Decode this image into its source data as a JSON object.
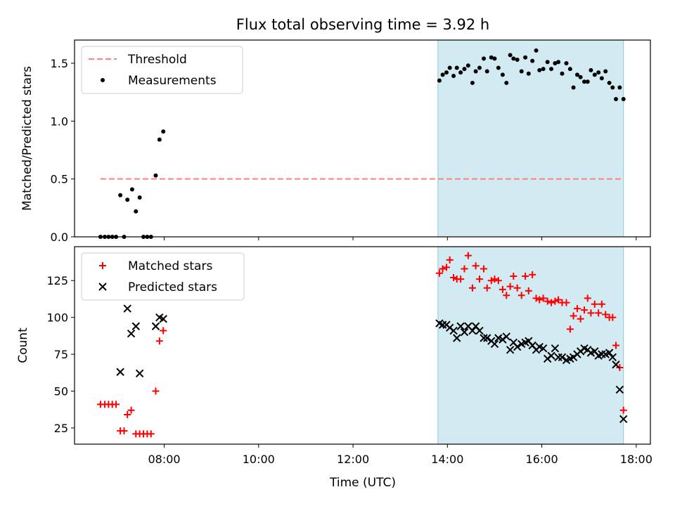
{
  "chart_data": {
    "type": "scatter",
    "title": "Flux total observing time = 3.92 h",
    "xlabel": "Time (UTC)",
    "xlim": [
      6.1,
      18.3
    ],
    "xticks": [
      {
        "value": 8,
        "label": "08:00"
      },
      {
        "value": 10,
        "label": "10:00"
      },
      {
        "value": 12,
        "label": "12:00"
      },
      {
        "value": 14,
        "label": "14:00"
      },
      {
        "value": 16,
        "label": "16:00"
      },
      {
        "value": 18,
        "label": "18:00"
      }
    ],
    "highlight_span": {
      "x_start": 13.8,
      "x_end": 17.73,
      "color": "#add8e6"
    },
    "panels": [
      {
        "id": "top",
        "ylabel": "Matched/Predicted stars",
        "ylim": [
          0,
          1.7
        ],
        "yticks": [
          {
            "value": 0,
            "label": "0.0"
          },
          {
            "value": 0.5,
            "label": "0.5"
          },
          {
            "value": 1.0,
            "label": "1.0"
          },
          {
            "value": 1.5,
            "label": "1.5"
          }
        ],
        "legend_position": "upper-left",
        "series": [
          {
            "name": "Threshold",
            "kind": "line",
            "style": "dashed",
            "color": "#ff7f7f",
            "points": [
              [
                6.65,
                0.5
              ],
              [
                17.7,
                0.5
              ]
            ]
          },
          {
            "name": "Measurements",
            "kind": "dot",
            "color": "#000000",
            "points": [
              [
                6.65,
                0.0
              ],
              [
                6.74,
                0.0
              ],
              [
                6.82,
                0.0
              ],
              [
                6.9,
                0.0
              ],
              [
                6.98,
                0.0
              ],
              [
                7.07,
                0.36
              ],
              [
                7.15,
                0.0
              ],
              [
                7.22,
                0.32
              ],
              [
                7.32,
                0.41
              ],
              [
                7.4,
                0.22
              ],
              [
                7.48,
                0.34
              ],
              [
                7.56,
                0.0
              ],
              [
                7.64,
                0.0
              ],
              [
                7.72,
                0.0
              ],
              [
                7.82,
                0.53
              ],
              [
                7.9,
                0.84
              ],
              [
                7.98,
                0.91
              ],
              [
                13.83,
                1.35
              ],
              [
                13.9,
                1.4
              ],
              [
                13.98,
                1.42
              ],
              [
                14.05,
                1.46
              ],
              [
                14.13,
                1.39
              ],
              [
                14.2,
                1.46
              ],
              [
                14.28,
                1.42
              ],
              [
                14.36,
                1.45
              ],
              [
                14.44,
                1.48
              ],
              [
                14.53,
                1.33
              ],
              [
                14.6,
                1.43
              ],
              [
                14.68,
                1.46
              ],
              [
                14.77,
                1.54
              ],
              [
                14.84,
                1.43
              ],
              [
                14.93,
                1.55
              ],
              [
                15.0,
                1.54
              ],
              [
                15.08,
                1.46
              ],
              [
                15.17,
                1.4
              ],
              [
                15.25,
                1.33
              ],
              [
                15.33,
                1.57
              ],
              [
                15.4,
                1.54
              ],
              [
                15.48,
                1.53
              ],
              [
                15.57,
                1.43
              ],
              [
                15.65,
                1.55
              ],
              [
                15.72,
                1.41
              ],
              [
                15.8,
                1.52
              ],
              [
                15.88,
                1.61
              ],
              [
                15.95,
                1.44
              ],
              [
                16.03,
                1.45
              ],
              [
                16.12,
                1.51
              ],
              [
                16.2,
                1.45
              ],
              [
                16.28,
                1.5
              ],
              [
                16.35,
                1.51
              ],
              [
                16.43,
                1.41
              ],
              [
                16.52,
                1.5
              ],
              [
                16.6,
                1.45
              ],
              [
                16.67,
                1.29
              ],
              [
                16.75,
                1.4
              ],
              [
                16.82,
                1.38
              ],
              [
                16.9,
                1.34
              ],
              [
                16.97,
                1.34
              ],
              [
                17.04,
                1.44
              ],
              [
                17.12,
                1.4
              ],
              [
                17.2,
                1.42
              ],
              [
                17.27,
                1.37
              ],
              [
                17.35,
                1.43
              ],
              [
                17.43,
                1.33
              ],
              [
                17.5,
                1.29
              ],
              [
                17.57,
                1.19
              ],
              [
                17.65,
                1.29
              ],
              [
                17.73,
                1.19
              ]
            ]
          }
        ]
      },
      {
        "id": "bottom",
        "ylabel": "Count",
        "ylim": [
          14,
          148
        ],
        "yticks": [
          {
            "value": 25,
            "label": "25"
          },
          {
            "value": 50,
            "label": "50"
          },
          {
            "value": 75,
            "label": "75"
          },
          {
            "value": 100,
            "label": "100"
          },
          {
            "value": 125,
            "label": "125"
          }
        ],
        "legend_position": "upper-left",
        "series": [
          {
            "name": "Matched stars",
            "kind": "plus",
            "color": "#ff0000",
            "points": [
              [
                6.65,
                41
              ],
              [
                6.74,
                41
              ],
              [
                6.82,
                41
              ],
              [
                6.9,
                41
              ],
              [
                6.98,
                41
              ],
              [
                7.07,
                23
              ],
              [
                7.15,
                23
              ],
              [
                7.22,
                34
              ],
              [
                7.3,
                37
              ],
              [
                7.4,
                21
              ],
              [
                7.48,
                21
              ],
              [
                7.56,
                21
              ],
              [
                7.64,
                21
              ],
              [
                7.72,
                21
              ],
              [
                7.82,
                50
              ],
              [
                7.9,
                84
              ],
              [
                7.98,
                91
              ],
              [
                13.83,
                130
              ],
              [
                13.9,
                133
              ],
              [
                13.98,
                134
              ],
              [
                14.05,
                139
              ],
              [
                14.13,
                127
              ],
              [
                14.2,
                126
              ],
              [
                14.28,
                126
              ],
              [
                14.36,
                133
              ],
              [
                14.44,
                142
              ],
              [
                14.53,
                120
              ],
              [
                14.6,
                135
              ],
              [
                14.68,
                126
              ],
              [
                14.77,
                133
              ],
              [
                14.84,
                120
              ],
              [
                14.93,
                125
              ],
              [
                15.0,
                126
              ],
              [
                15.08,
                125
              ],
              [
                15.17,
                119
              ],
              [
                15.25,
                115
              ],
              [
                15.33,
                121
              ],
              [
                15.4,
                128
              ],
              [
                15.48,
                120
              ],
              [
                15.57,
                115
              ],
              [
                15.65,
                128
              ],
              [
                15.72,
                118
              ],
              [
                15.8,
                129
              ],
              [
                15.88,
                113
              ],
              [
                15.95,
                112
              ],
              [
                16.03,
                113
              ],
              [
                16.12,
                111
              ],
              [
                16.2,
                110
              ],
              [
                16.28,
                111
              ],
              [
                16.35,
                112
              ],
              [
                16.43,
                110
              ],
              [
                16.52,
                110
              ],
              [
                16.6,
                92
              ],
              [
                16.67,
                101
              ],
              [
                16.75,
                106
              ],
              [
                16.82,
                99
              ],
              [
                16.9,
                105
              ],
              [
                16.97,
                113
              ],
              [
                17.04,
                103
              ],
              [
                17.12,
                109
              ],
              [
                17.2,
                103
              ],
              [
                17.27,
                109
              ],
              [
                17.35,
                102
              ],
              [
                17.43,
                100
              ],
              [
                17.5,
                100
              ],
              [
                17.57,
                81
              ],
              [
                17.65,
                66
              ],
              [
                17.73,
                37
              ]
            ]
          },
          {
            "name": "Predicted stars",
            "kind": "x",
            "color": "#000000",
            "points": [
              [
                7.07,
                63
              ],
              [
                7.22,
                106
              ],
              [
                7.3,
                89
              ],
              [
                7.4,
                94
              ],
              [
                7.48,
                62
              ],
              [
                7.82,
                94
              ],
              [
                7.9,
                100
              ],
              [
                7.98,
                99
              ],
              [
                13.83,
                96
              ],
              [
                13.9,
                95
              ],
              [
                13.98,
                95
              ],
              [
                14.05,
                93
              ],
              [
                14.13,
                91
              ],
              [
                14.2,
                86
              ],
              [
                14.28,
                94
              ],
              [
                14.36,
                90
              ],
              [
                14.44,
                94
              ],
              [
                14.53,
                91
              ],
              [
                14.6,
                94
              ],
              [
                14.68,
                91
              ],
              [
                14.77,
                86
              ],
              [
                14.84,
                86
              ],
              [
                14.93,
                84
              ],
              [
                15.0,
                82
              ],
              [
                15.08,
                86
              ],
              [
                15.17,
                85
              ],
              [
                15.25,
                87
              ],
              [
                15.33,
                78
              ],
              [
                15.4,
                83
              ],
              [
                15.48,
                80
              ],
              [
                15.57,
                82
              ],
              [
                15.65,
                83
              ],
              [
                15.72,
                84
              ],
              [
                15.8,
                81
              ],
              [
                15.88,
                78
              ],
              [
                15.95,
                80
              ],
              [
                16.03,
                79
              ],
              [
                16.12,
                72
              ],
              [
                16.2,
                74
              ],
              [
                16.28,
                79
              ],
              [
                16.35,
                73
              ],
              [
                16.43,
                73
              ],
              [
                16.52,
                71
              ],
              [
                16.6,
                72
              ],
              [
                16.67,
                73
              ],
              [
                16.75,
                75
              ],
              [
                16.82,
                77
              ],
              [
                16.9,
                79
              ],
              [
                16.97,
                78
              ],
              [
                17.04,
                76
              ],
              [
                17.12,
                77
              ],
              [
                17.2,
                74
              ],
              [
                17.27,
                75
              ],
              [
                17.35,
                75
              ],
              [
                17.43,
                76
              ],
              [
                17.5,
                73
              ],
              [
                17.57,
                68
              ],
              [
                17.65,
                51
              ],
              [
                17.73,
                31
              ]
            ]
          }
        ]
      }
    ]
  }
}
